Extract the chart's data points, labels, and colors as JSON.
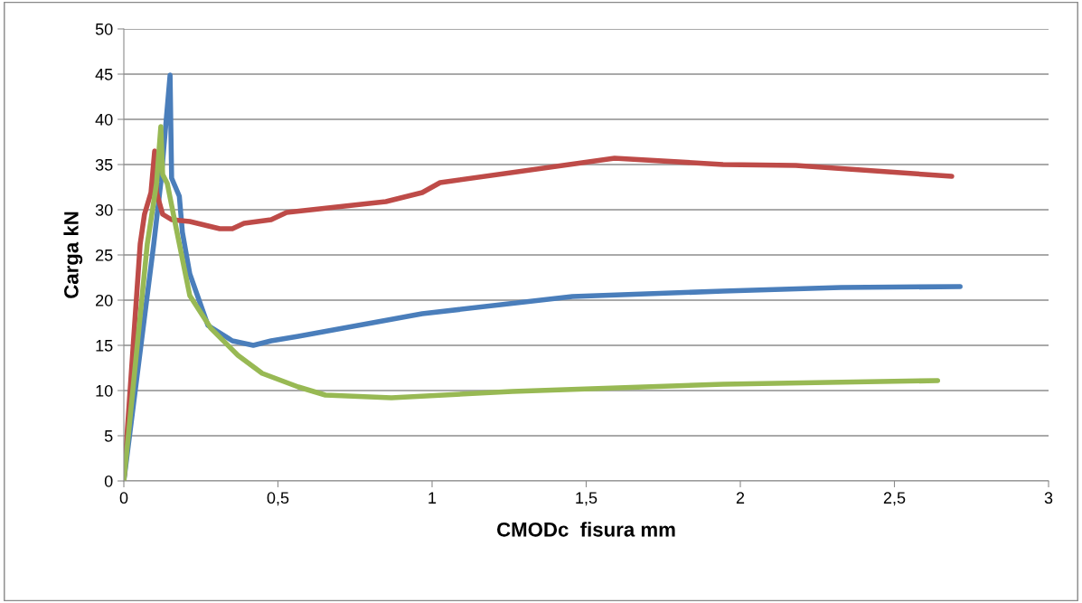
{
  "chart_data": {
    "type": "line",
    "xlabel": "CMODc  fisura mm",
    "ylabel": "Carga kN",
    "xlim": [
      0,
      3
    ],
    "xticks": [
      0,
      {
        "value": 0.5,
        "label": "0,5"
      },
      1,
      {
        "value": 1.5,
        "label": "1,5"
      },
      2,
      {
        "value": 2.5,
        "label": "2,5"
      },
      3
    ],
    "ylim": [
      0,
      50
    ],
    "yticks": [
      0,
      5,
      10,
      15,
      20,
      25,
      30,
      35,
      40,
      45,
      50
    ],
    "grid": "y",
    "legend": false,
    "series": [
      {
        "color": "#4a7ebb",
        "x": [
          0,
          0.097,
          0.12,
          0.15,
          0.155,
          0.18,
          0.19,
          0.214,
          0.273,
          0.352,
          0.42,
          0.478,
          0.566,
          0.968,
          1.455,
          1.944,
          2.326,
          2.713
        ],
        "values": [
          0,
          26.2,
          33,
          44.9,
          33.5,
          31.5,
          27.5,
          22.9,
          17.2,
          15.5,
          15.0,
          15.5,
          16.0,
          18.5,
          20.4,
          21.0,
          21.4,
          21.5
        ]
      },
      {
        "color": "#be4b48",
        "x": [
          0,
          0.053,
          0.067,
          0.088,
          0.1,
          0.106,
          0.126,
          0.155,
          0.214,
          0.311,
          0.352,
          0.39,
          0.478,
          0.528,
          0.85,
          0.968,
          1.026,
          1.592,
          1.944,
          2.18,
          2.686
        ],
        "values": [
          0,
          26.2,
          29.5,
          31.9,
          36.5,
          31.9,
          29.5,
          28.9,
          28.7,
          27.9,
          27.9,
          28.5,
          28.9,
          29.7,
          30.9,
          31.9,
          33.0,
          35.7,
          35.0,
          34.9,
          33.7
        ]
      },
      {
        "color": "#98b954",
        "x": [
          0,
          0.076,
          0.106,
          0.12,
          0.126,
          0.141,
          0.176,
          0.214,
          0.282,
          0.37,
          0.449,
          0.566,
          0.654,
          0.868,
          1.26,
          1.944,
          2.64
        ],
        "values": [
          0,
          26.2,
          32.9,
          39.2,
          33.9,
          32.9,
          26.9,
          20.5,
          16.9,
          13.9,
          11.9,
          10.4,
          9.5,
          9.2,
          9.9,
          10.7,
          11.1
        ]
      }
    ]
  }
}
